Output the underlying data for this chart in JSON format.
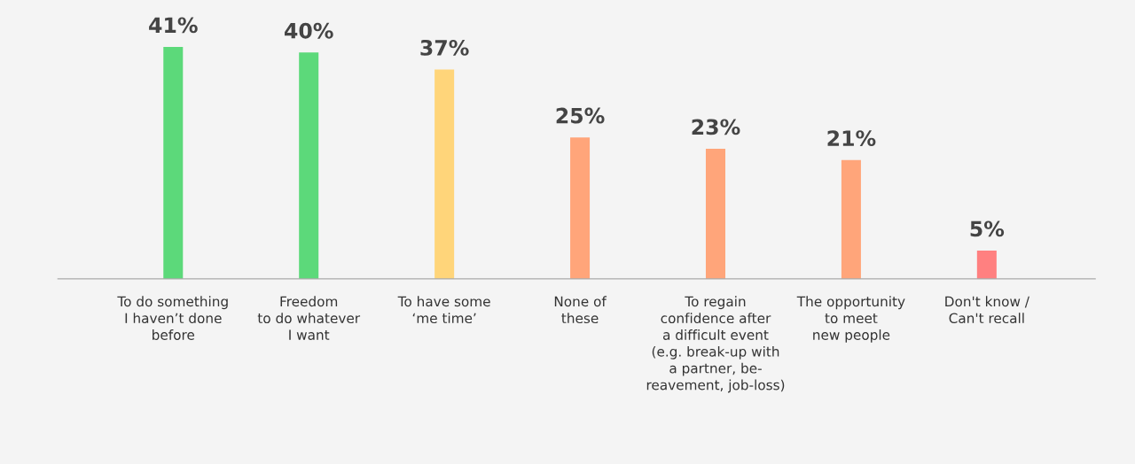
{
  "chart_data": {
    "type": "bar",
    "categories": [
      "To do something\nI haven’t done\nbefore",
      "Freedom\nto do whatever\nI want",
      "To have some\n‘me time’",
      "None of\nthese",
      "To regain\nconfidence after\na difficult event\n(e.g. break-up with\na partner, be-\nreavement, job-loss)",
      "The opportunity\nto meet\nnew people",
      "Don't know /\nCan't recall"
    ],
    "values": [
      41,
      40,
      37,
      25,
      23,
      21,
      5
    ],
    "colors": [
      "#5cd97a",
      "#5cd97a",
      "#ffd57a",
      "#ffa57a",
      "#ffa57a",
      "#ffa57a",
      "#ff8080"
    ],
    "value_labels": [
      "41%",
      "40%",
      "37%",
      "25%",
      "23%",
      "21%",
      "5%"
    ],
    "grid": false,
    "legend": false
  }
}
